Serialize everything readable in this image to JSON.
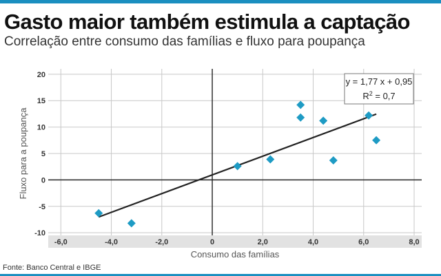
{
  "header": {
    "title": "Gasto maior também estimula a captação",
    "subtitle": "Correlação entre consumo das famílias e fluxo para poupança"
  },
  "footer": {
    "source": "Fonte: Banco Central e IBGE"
  },
  "colors": {
    "accent": "#1a8fc0",
    "marker": "#1e9bc4",
    "trendline": "#222222",
    "axis_band": "#e2e2e2"
  },
  "chart_data": {
    "type": "scatter",
    "xlabel": "Consumo das famílias",
    "ylabel": "Fluxo para a poupança",
    "xlim": [
      -6.5,
      8.3
    ],
    "ylim": [
      -10.5,
      20.5
    ],
    "x_ticks": [
      -6,
      -4,
      -2,
      0,
      2,
      4,
      6,
      8
    ],
    "x_tick_labels": [
      "-6,0",
      "-4,0",
      "-2,0",
      "0",
      "2,0",
      "4,0",
      "6,0",
      "8,0"
    ],
    "y_ticks": [
      -10,
      -5,
      0,
      5,
      10,
      15,
      20
    ],
    "y_tick_labels": [
      "-10",
      "-5",
      "0",
      "5",
      "10",
      "15",
      "20"
    ],
    "grid": true,
    "points": [
      {
        "x": -4.5,
        "y": -6.3
      },
      {
        "x": -3.2,
        "y": -8.2
      },
      {
        "x": 1.0,
        "y": 2.6
      },
      {
        "x": 2.3,
        "y": 3.9
      },
      {
        "x": 3.5,
        "y": 14.2
      },
      {
        "x": 3.5,
        "y": 11.8
      },
      {
        "x": 4.4,
        "y": 11.2
      },
      {
        "x": 4.8,
        "y": 3.7
      },
      {
        "x": 6.2,
        "y": 12.2
      },
      {
        "x": 6.5,
        "y": 7.5
      }
    ],
    "trendline": {
      "x_start": -4.5,
      "x_end": 6.5,
      "slope": 1.77,
      "intercept": 0.95,
      "equation": "y = 1,77 x + 0,95",
      "r2_label": "R",
      "r2_sup": "2",
      "r2_value": " = 0,7"
    }
  }
}
